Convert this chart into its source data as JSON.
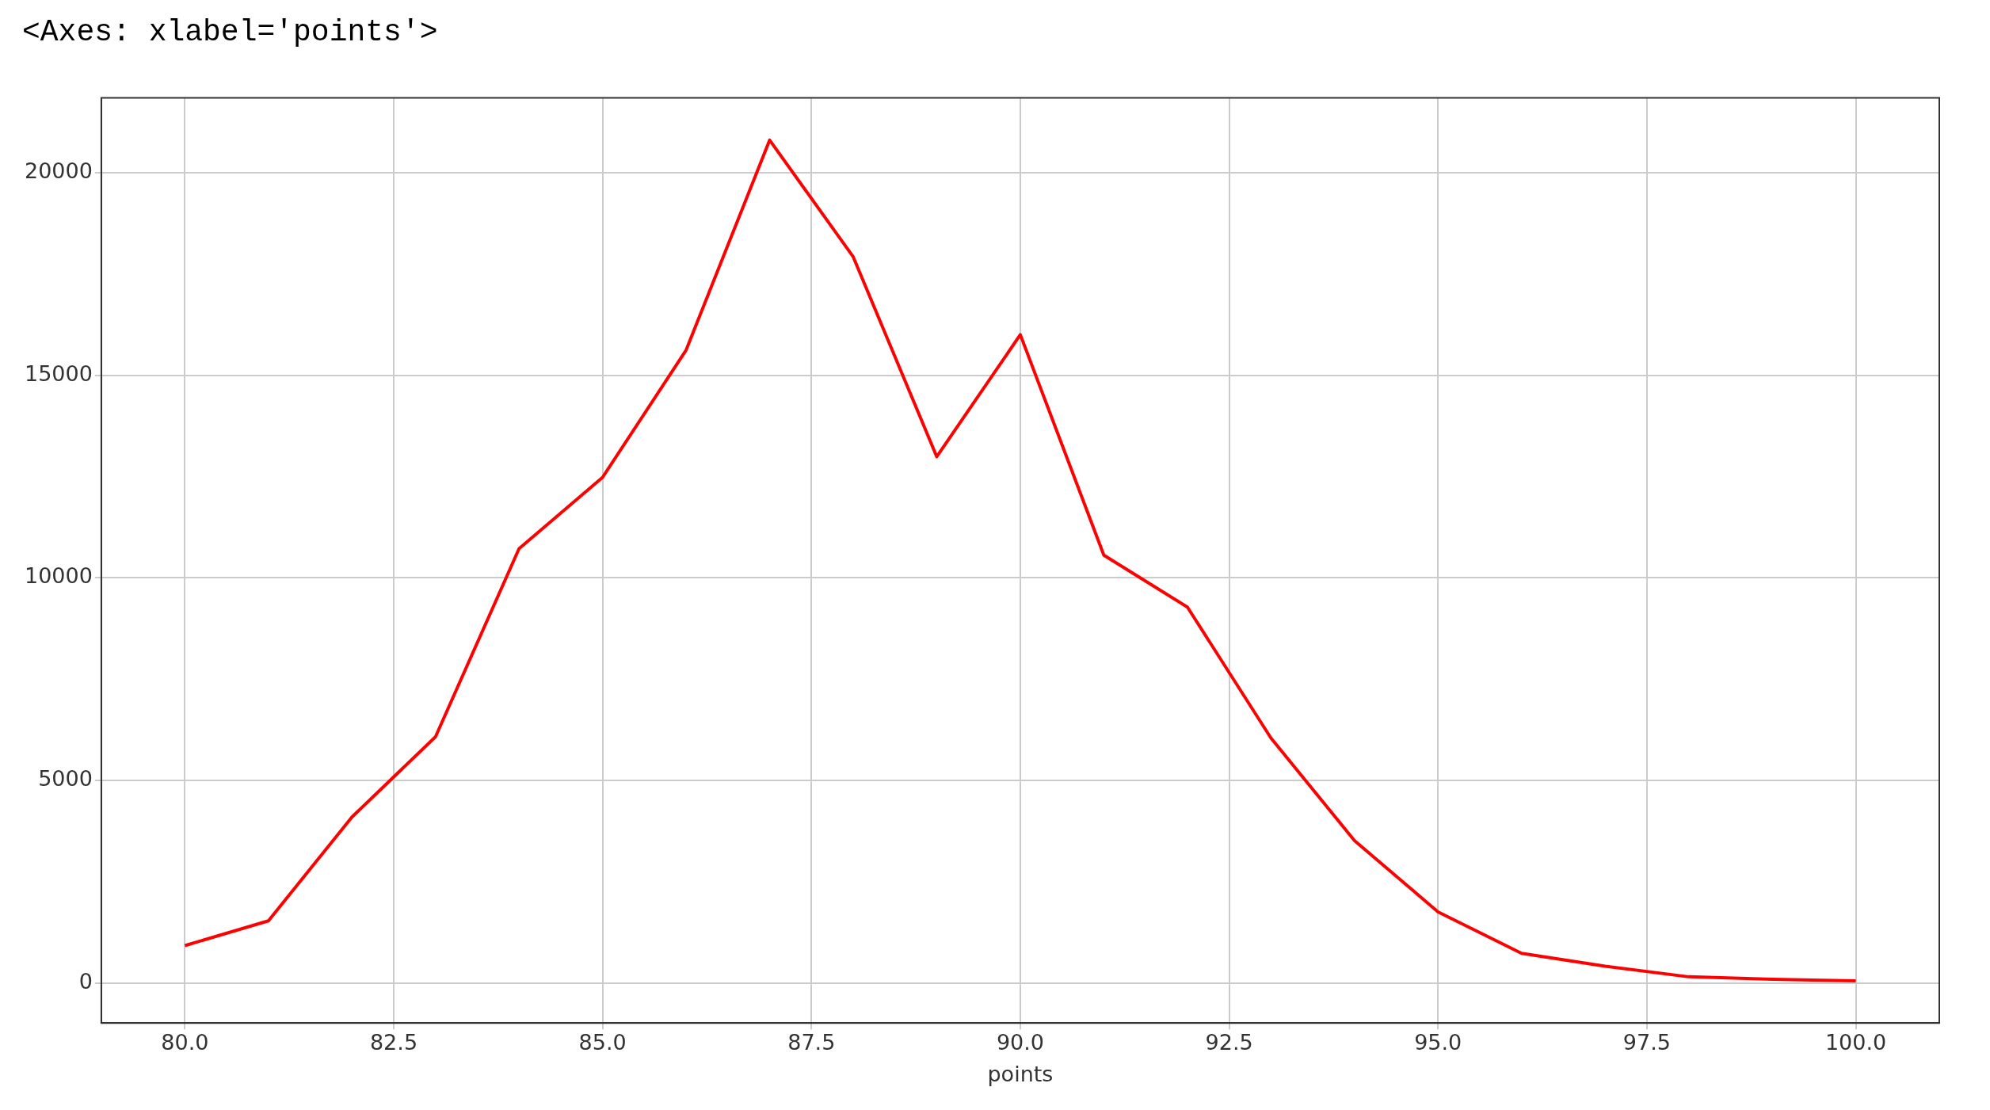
{
  "chart_data": {
    "type": "line",
    "title": "<Axes: xlabel='points'>",
    "xlabel": "points",
    "x": [
      80,
      81,
      82,
      83,
      84,
      85,
      86,
      87,
      88,
      89,
      90,
      91,
      92,
      93,
      94,
      95,
      96,
      97,
      98,
      99,
      100
    ],
    "series": [
      {
        "color": "#ff0000",
        "values": [
          930,
          1540,
          4100,
          6080,
          10720,
          12480,
          15620,
          20800,
          17920,
          12990,
          16000,
          10560,
          9280,
          6050,
          3520,
          1760,
          740,
          420,
          160,
          100,
          60
        ]
      }
    ],
    "xlim": [
      79,
      101
    ],
    "ylim": [
      -980,
      21840
    ],
    "xticks": [
      {
        "value": 80,
        "label": "80.0"
      },
      {
        "value": 82.5,
        "label": "82.5"
      },
      {
        "value": 85,
        "label": "85.0"
      },
      {
        "value": 87.5,
        "label": "87.5"
      },
      {
        "value": 90,
        "label": "90.0"
      },
      {
        "value": 92.5,
        "label": "92.5"
      },
      {
        "value": 95,
        "label": "95.0"
      },
      {
        "value": 97.5,
        "label": "97.5"
      },
      {
        "value": 100,
        "label": "100.0"
      }
    ],
    "yticks": [
      0,
      5000,
      10000,
      15000,
      20000
    ],
    "grid": true,
    "legend": false,
    "marker": "none",
    "line_style": "solid"
  }
}
